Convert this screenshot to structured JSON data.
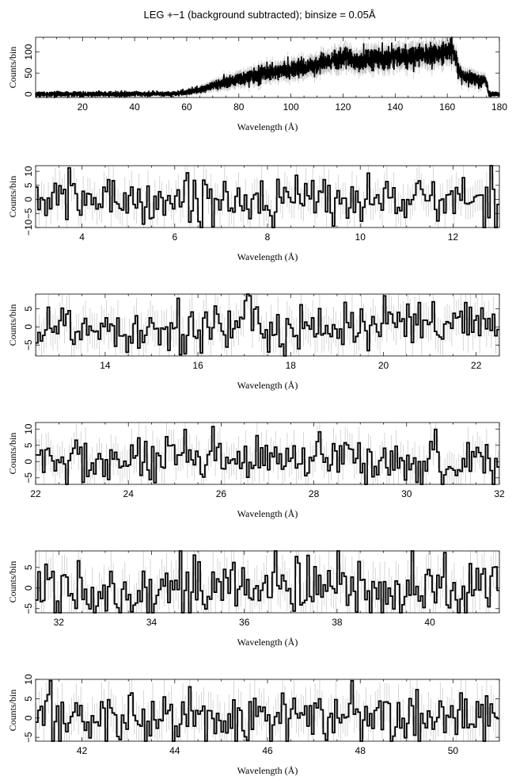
{
  "figure": {
    "title": "LEG +−1 (background subtracted); binsize = 0.05Å"
  },
  "chart_data": [
    {
      "type": "line",
      "style": "step-histogram-with-errorbars",
      "xlabel": "Wavelength (Å)",
      "ylabel": "Counts/bin",
      "xlim": [
        2,
        180
      ],
      "ylim": [
        -8,
        135
      ],
      "xticks": [
        20,
        40,
        60,
        80,
        100,
        120,
        140,
        160,
        180
      ],
      "yticks": [
        0,
        50,
        100
      ],
      "envelope": {
        "x": [
          2,
          20,
          40,
          55,
          60,
          65,
          70,
          80,
          90,
          100,
          110,
          115,
          120,
          125,
          130,
          140,
          150,
          155,
          160,
          162,
          163,
          165,
          170,
          175,
          176,
          180
        ],
        "y": [
          0,
          0,
          0,
          1,
          5,
          10,
          20,
          35,
          50,
          58,
          70,
          80,
          88,
          78,
          82,
          88,
          92,
          95,
          100,
          105,
          90,
          45,
          38,
          30,
          0,
          0
        ]
      },
      "noise": 12
    },
    {
      "type": "line",
      "style": "step-histogram-with-errorbars",
      "xlabel": "Wavelength (Å)",
      "ylabel": "Counts/bin",
      "xlim": [
        3,
        13
      ],
      "ylim": [
        -10,
        12
      ],
      "xticks": [
        4,
        6,
        8,
        10,
        12
      ],
      "yticks": [
        -10,
        -5,
        0,
        5,
        10
      ],
      "noise": 4
    },
    {
      "type": "line",
      "style": "step-histogram-with-errorbars",
      "xlabel": "Wavelength (Å)",
      "ylabel": "Counts/bin",
      "xlim": [
        12.5,
        22.5
      ],
      "ylim": [
        -8,
        9
      ],
      "xticks": [
        14,
        16,
        18,
        20,
        22
      ],
      "yticks": [
        -5,
        0,
        5
      ],
      "noise": 3.5
    },
    {
      "type": "line",
      "style": "step-histogram-with-errorbars",
      "xlabel": "Wavelength (Å)",
      "ylabel": "Counts/bin",
      "xlim": [
        22,
        32
      ],
      "ylim": [
        -7,
        12
      ],
      "xticks": [
        22,
        24,
        26,
        28,
        30,
        32
      ],
      "yticks": [
        -5,
        0,
        5,
        10
      ],
      "noise": 3.5
    },
    {
      "type": "line",
      "style": "step-histogram-with-errorbars",
      "xlabel": "Wavelength (Å)",
      "ylabel": "Counts/bin",
      "xlim": [
        31.5,
        41.5
      ],
      "ylim": [
        -6,
        9
      ],
      "xticks": [
        32,
        34,
        36,
        38,
        40
      ],
      "yticks": [
        -5,
        0,
        5
      ],
      "noise": 3.5
    },
    {
      "type": "line",
      "style": "step-histogram-with-errorbars",
      "xlabel": "Wavelength (Å)",
      "ylabel": "Counts/bin",
      "xlim": [
        41,
        51
      ],
      "ylim": [
        -6,
        10
      ],
      "xticks": [
        42,
        44,
        46,
        48,
        50
      ],
      "yticks": [
        -5,
        0,
        5,
        10
      ],
      "noise": 3.5
    }
  ]
}
